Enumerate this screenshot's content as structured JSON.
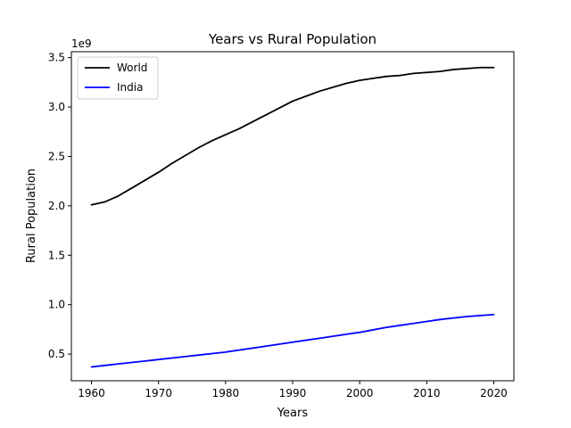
{
  "chart_data": {
    "type": "line",
    "title": "Years vs Rural Population",
    "xlabel": "Years",
    "ylabel": "Rural Population",
    "y_offset_label": "1e9",
    "xlim": [
      1957.0,
      2023.0
    ],
    "ylim": [
      0.23,
      3.56
    ],
    "x_ticks": [
      1960,
      1970,
      1980,
      1990,
      2000,
      2010,
      2020
    ],
    "x_tick_labels": [
      "1960",
      "1970",
      "1980",
      "1990",
      "2000",
      "2010",
      "2020"
    ],
    "y_ticks": [
      0.5,
      1.0,
      1.5,
      2.0,
      2.5,
      3.0,
      3.5
    ],
    "y_tick_labels": [
      "0.5",
      "1.0",
      "1.5",
      "2.0",
      "2.5",
      "3.0",
      "3.5"
    ],
    "grid": false,
    "legend_position": "top-left",
    "series": [
      {
        "name": "World",
        "color": "#000000",
        "x": [
          1960,
          1962,
          1964,
          1966,
          1968,
          1970,
          1972,
          1974,
          1976,
          1978,
          1980,
          1982,
          1984,
          1986,
          1988,
          1990,
          1992,
          1994,
          1996,
          1998,
          2000,
          2002,
          2004,
          2006,
          2008,
          2010,
          2012,
          2014,
          2016,
          2018,
          2020
        ],
        "values": [
          2.01,
          2.04,
          2.1,
          2.18,
          2.26,
          2.34,
          2.43,
          2.51,
          2.59,
          2.66,
          2.72,
          2.78,
          2.85,
          2.92,
          2.99,
          3.06,
          3.11,
          3.16,
          3.2,
          3.24,
          3.27,
          3.29,
          3.31,
          3.32,
          3.34,
          3.35,
          3.36,
          3.38,
          3.39,
          3.4,
          3.4
        ]
      },
      {
        "name": "India",
        "color": "#0000ff",
        "x": [
          1960,
          1962,
          1964,
          1966,
          1968,
          1970,
          1972,
          1974,
          1976,
          1978,
          1980,
          1982,
          1984,
          1986,
          1988,
          1990,
          1992,
          1994,
          1996,
          1998,
          2000,
          2002,
          2004,
          2006,
          2008,
          2010,
          2012,
          2014,
          2016,
          2018,
          2020
        ],
        "values": [
          0.37,
          0.385,
          0.4,
          0.415,
          0.43,
          0.445,
          0.46,
          0.475,
          0.49,
          0.505,
          0.52,
          0.54,
          0.56,
          0.58,
          0.6,
          0.62,
          0.64,
          0.66,
          0.68,
          0.7,
          0.72,
          0.745,
          0.77,
          0.79,
          0.81,
          0.83,
          0.85,
          0.865,
          0.88,
          0.89,
          0.9
        ]
      }
    ]
  }
}
